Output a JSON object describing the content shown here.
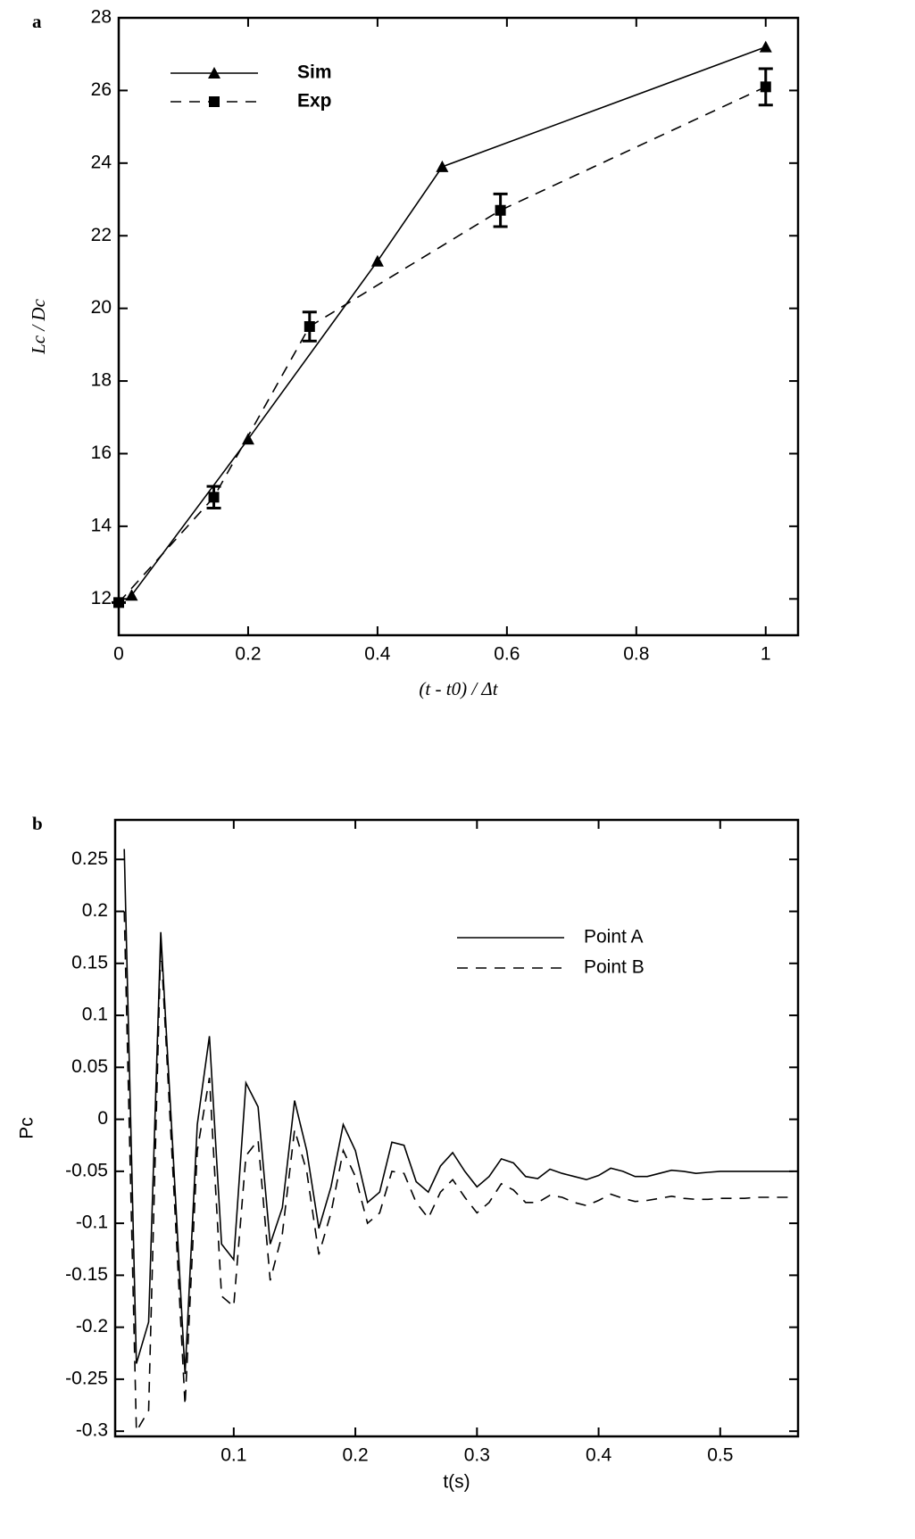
{
  "chart_data": [
    {
      "type": "line",
      "panel_label": "a",
      "x_label": "(t - t0) / Δt",
      "y_label": "Lc / Dc",
      "xlim": [
        0,
        1.05
      ],
      "ylim": [
        11,
        28
      ],
      "xticks": [
        0,
        0.2,
        0.4,
        0.6,
        0.8,
        1
      ],
      "yticks": [
        12,
        14,
        16,
        18,
        20,
        22,
        24,
        26,
        28
      ],
      "legend": "upper left",
      "grid": false,
      "series": [
        {
          "name": "Sim",
          "color": "#000000",
          "dash": "solid",
          "marker": "triangle",
          "x": [
            0.02,
            0.2,
            0.4,
            0.5,
            1
          ],
          "values": [
            12.1,
            16.4,
            21.3,
            23.9,
            27.2
          ]
        },
        {
          "name": "Exp",
          "color": "#000000",
          "dash": "dashed",
          "marker": "square",
          "x": [
            0,
            0.147,
            0.295,
            0.59,
            1
          ],
          "values": [
            11.9,
            14.8,
            19.5,
            22.7,
            26.1
          ],
          "errors": [
            0,
            0.3,
            0.4,
            0.45,
            0.5
          ]
        }
      ]
    },
    {
      "type": "line",
      "panel_label": "b",
      "x_label": "t(s)",
      "y_label": "Pc",
      "xlim": [
        0.0025,
        0.564
      ],
      "ylim": [
        -0.305,
        0.288
      ],
      "xticks": [
        0.1,
        0.2,
        0.3,
        0.4,
        0.5
      ],
      "yticks": [
        -0.3,
        -0.25,
        -0.2,
        -0.15,
        -0.1,
        -0.05,
        0,
        0.05,
        0.1,
        0.15,
        0.2,
        0.25
      ],
      "legend": "upper right",
      "grid": false,
      "series": [
        {
          "name": "Point A",
          "color": "#000000",
          "dash": "solid",
          "marker": "none",
          "x": [
            0.01,
            0.02,
            0.03,
            0.04,
            0.05,
            0.06,
            0.07,
            0.08,
            0.09,
            0.1,
            0.11,
            0.12,
            0.13,
            0.14,
            0.15,
            0.16,
            0.17,
            0.18,
            0.19,
            0.2,
            0.21,
            0.22,
            0.23,
            0.24,
            0.25,
            0.26,
            0.27,
            0.28,
            0.29,
            0.3,
            0.31,
            0.32,
            0.33,
            0.34,
            0.35,
            0.36,
            0.37,
            0.38,
            0.39,
            0.4,
            0.41,
            0.42,
            0.43,
            0.44,
            0.45,
            0.46,
            0.47,
            0.48,
            0.49,
            0.5,
            0.51,
            0.52,
            0.53,
            0.54,
            0.55,
            0.56
          ],
          "values": [
            0.26,
            -0.235,
            -0.195,
            0.18,
            -0.03,
            -0.245,
            -0.005,
            0.08,
            -0.12,
            -0.135,
            0.035,
            0.012,
            -0.12,
            -0.085,
            0.018,
            -0.03,
            -0.105,
            -0.065,
            -0.005,
            -0.03,
            -0.08,
            -0.07,
            -0.022,
            -0.025,
            -0.06,
            -0.07,
            -0.045,
            -0.032,
            -0.05,
            -0.065,
            -0.055,
            -0.038,
            -0.042,
            -0.055,
            -0.057,
            -0.048,
            -0.052,
            -0.055,
            -0.058,
            -0.054,
            -0.047,
            -0.05,
            -0.055,
            -0.055,
            -0.052,
            -0.049,
            -0.05,
            -0.052,
            -0.051,
            -0.05,
            -0.05,
            -0.05,
            -0.05,
            -0.05,
            -0.05,
            -0.05
          ]
        },
        {
          "name": "Point B",
          "color": "#000000",
          "dash": "dashed",
          "marker": "none",
          "x": [
            0.01,
            0.02,
            0.03,
            0.04,
            0.05,
            0.06,
            0.07,
            0.08,
            0.09,
            0.1,
            0.11,
            0.12,
            0.13,
            0.14,
            0.15,
            0.16,
            0.17,
            0.18,
            0.19,
            0.2,
            0.21,
            0.22,
            0.23,
            0.24,
            0.25,
            0.26,
            0.27,
            0.28,
            0.29,
            0.3,
            0.31,
            0.32,
            0.33,
            0.34,
            0.35,
            0.36,
            0.37,
            0.38,
            0.39,
            0.4,
            0.41,
            0.42,
            0.43,
            0.44,
            0.45,
            0.46,
            0.47,
            0.48,
            0.49,
            0.5,
            0.51,
            0.52,
            0.53,
            0.54,
            0.55,
            0.56
          ],
          "values": [
            0.2,
            -0.3,
            -0.28,
            0.17,
            -0.05,
            -0.275,
            -0.03,
            0.04,
            -0.17,
            -0.18,
            -0.035,
            -0.02,
            -0.155,
            -0.11,
            -0.01,
            -0.05,
            -0.13,
            -0.09,
            -0.03,
            -0.055,
            -0.1,
            -0.09,
            -0.05,
            -0.052,
            -0.08,
            -0.095,
            -0.07,
            -0.058,
            -0.075,
            -0.09,
            -0.08,
            -0.062,
            -0.068,
            -0.08,
            -0.08,
            -0.073,
            -0.075,
            -0.08,
            -0.083,
            -0.078,
            -0.072,
            -0.076,
            -0.079,
            -0.078,
            -0.076,
            -0.074,
            -0.076,
            -0.077,
            -0.077,
            -0.076,
            -0.076,
            -0.076,
            -0.075,
            -0.075,
            -0.075,
            -0.075
          ]
        }
      ]
    }
  ]
}
